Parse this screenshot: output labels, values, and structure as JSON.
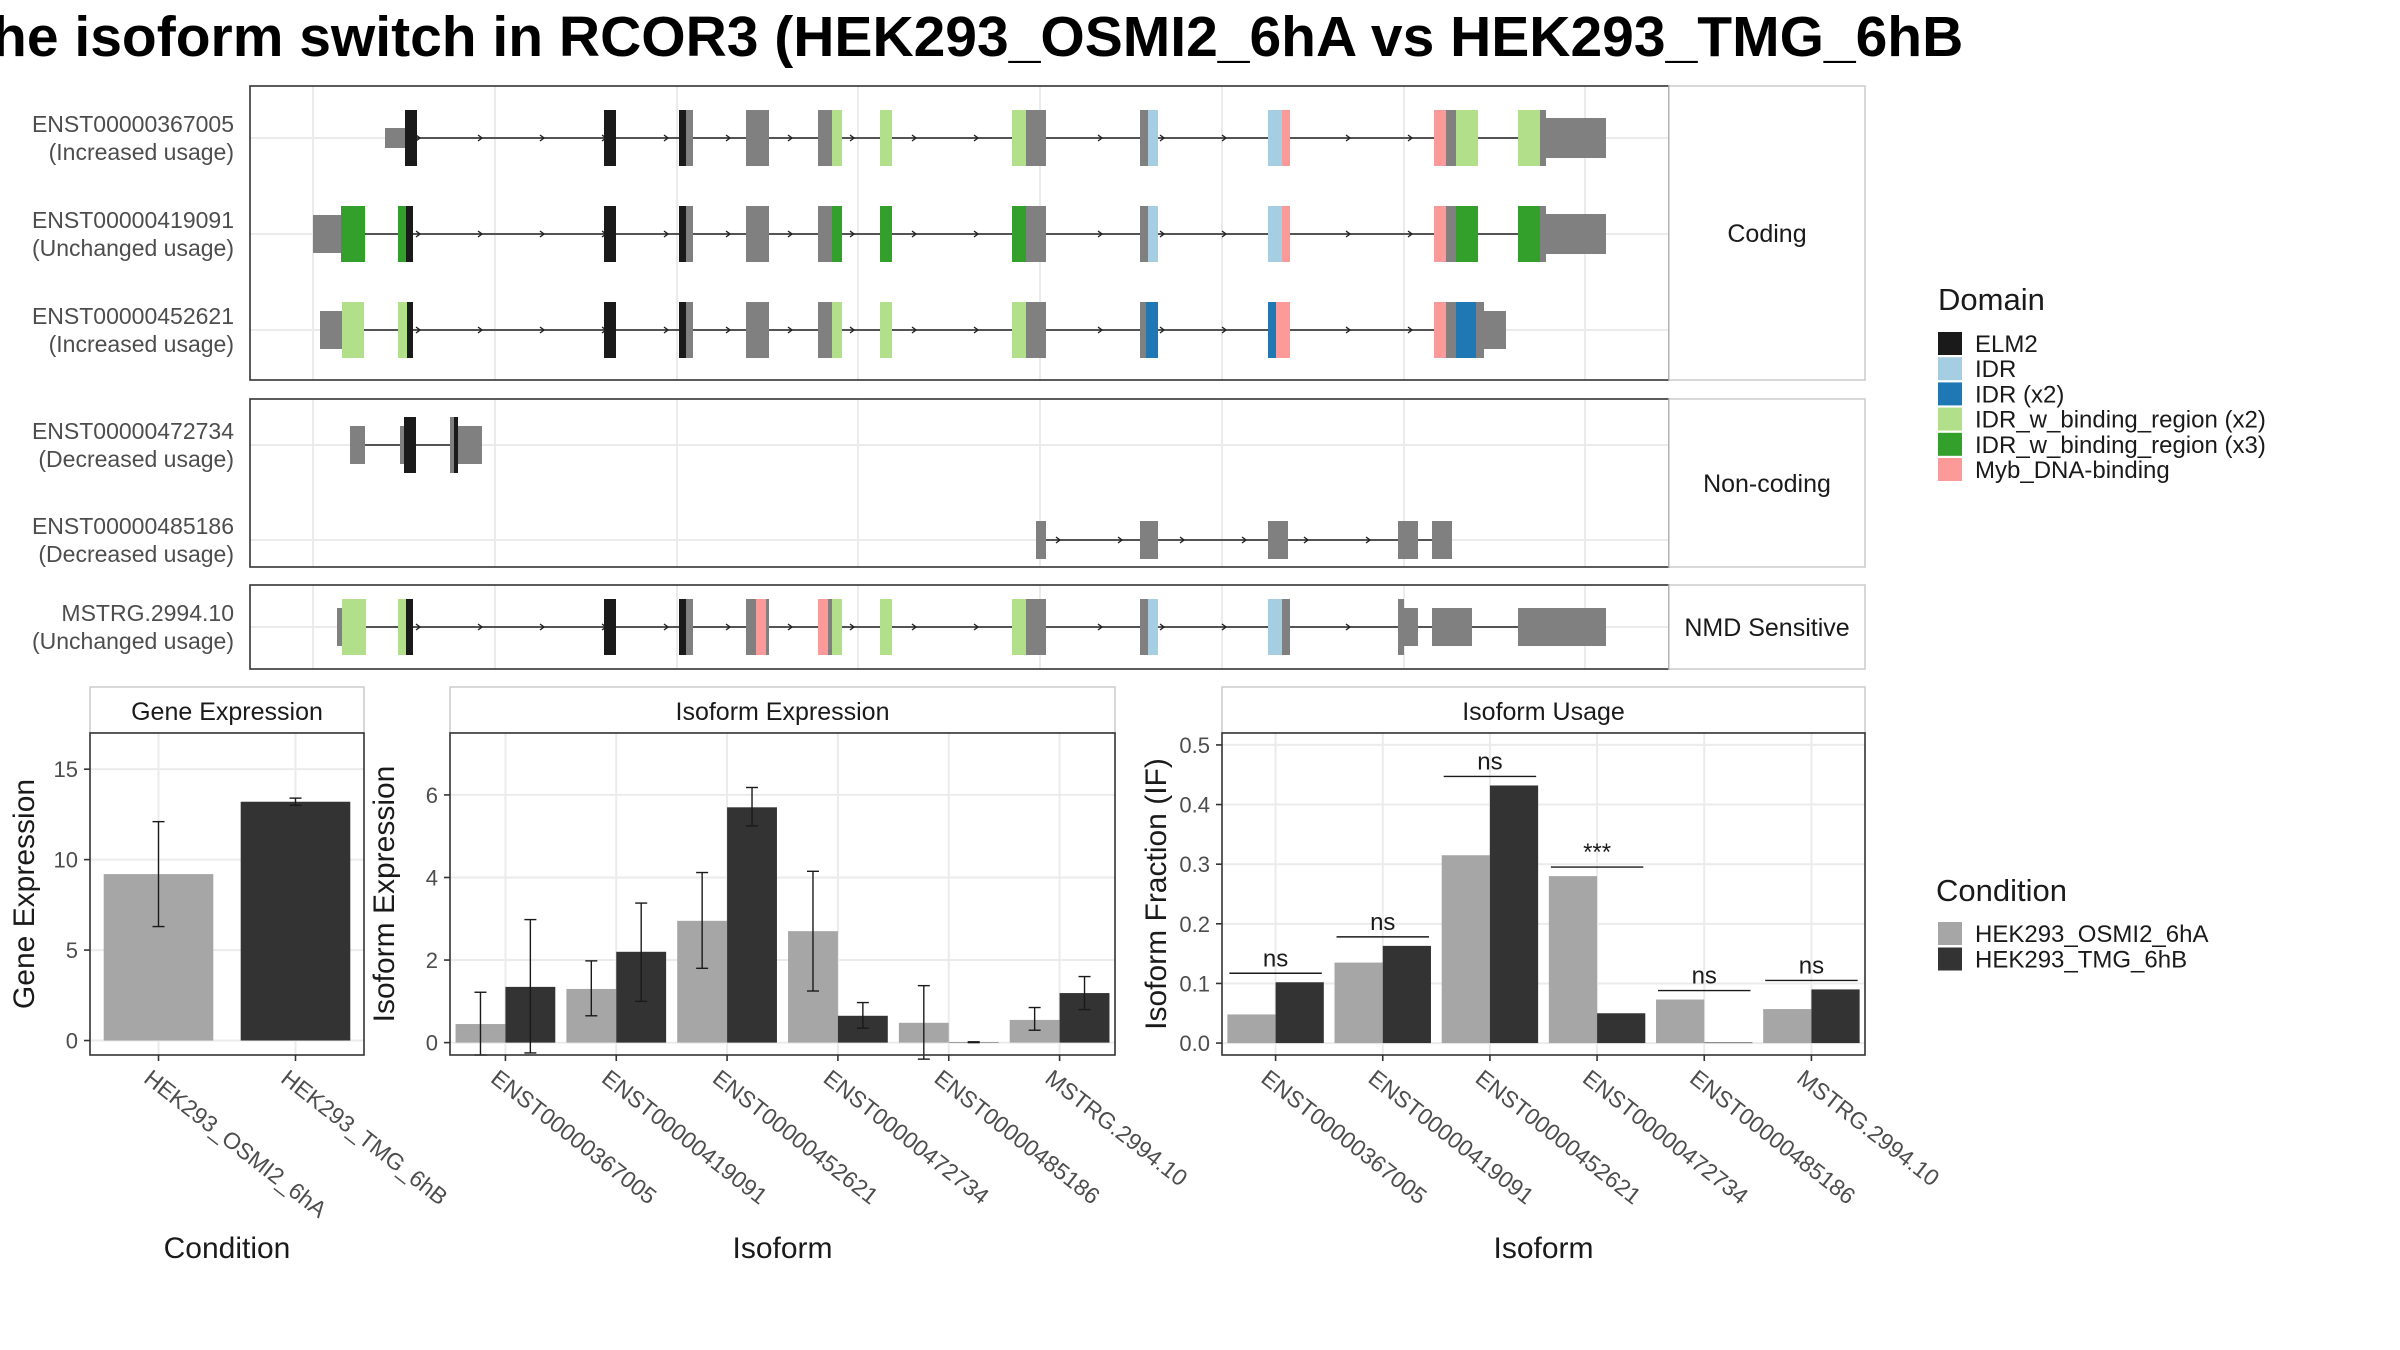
{
  "title": "he isoform switch in RCOR3 (HEK293_OSMI2_6hA vs HEK293_TMG_6hB",
  "colors": {
    "exon": "#808080",
    "intron": "#222222",
    "panel_border": "#333333",
    "grid": "#ebebeb",
    "strip_bg": "#ffffff",
    "cond_a": "#a6a6a6",
    "cond_b": "#333333"
  },
  "domain_legend": {
    "title": "Domain",
    "items": [
      {
        "label": "ELM2",
        "color": "#1a1a1a"
      },
      {
        "label": "IDR",
        "color": "#a6cee3"
      },
      {
        "label": "IDR (x2)",
        "color": "#1f78b4"
      },
      {
        "label": "IDR_w_binding_region (x2)",
        "color": "#b2df8a"
      },
      {
        "label": "IDR_w_binding_region (x3)",
        "color": "#33a02c"
      },
      {
        "label": "Myb_DNA-binding",
        "color": "#fb9a99"
      }
    ]
  },
  "condition_legend": {
    "title": "Condition",
    "items": [
      {
        "label": "HEK293_OSMI2_6hA",
        "color": "#a6a6a6"
      },
      {
        "label": "HEK293_TMG_6hB",
        "color": "#333333"
      }
    ]
  },
  "gene_model": {
    "groups": [
      {
        "label": "Coding",
        "isoforms": [
          {
            "id": "ENST00000367005",
            "status": "(Increased usage)"
          },
          {
            "id": "ENST00000419091",
            "status": "(Unchanged usage)"
          },
          {
            "id": "ENST00000452621",
            "status": "(Increased usage)"
          }
        ]
      },
      {
        "label": "Non-coding",
        "isoforms": [
          {
            "id": "ENST00000472734",
            "status": "(Decreased usage)"
          },
          {
            "id": "ENST00000485186",
            "status": "(Decreased usage)"
          }
        ]
      },
      {
        "label": "NMD Sensitive",
        "isoforms": [
          {
            "id": "MSTRG.2994.10",
            "status": "(Unchanged usage)"
          }
        ]
      }
    ]
  },
  "chart_data": [
    {
      "type": "bar",
      "title": "Gene Expression",
      "xlabel": "Condition",
      "ylabel": "Gene Expression",
      "categories": [
        "HEK293_OSMI2_6hA",
        "HEK293_TMG_6hB"
      ],
      "values": [
        9.2,
        13.2
      ],
      "error_low": [
        6.3,
        13.0
      ],
      "error_high": [
        12.1,
        13.4
      ],
      "ylim": [
        -0.8,
        17
      ],
      "yticks": [
        "0",
        "5",
        "10",
        "15"
      ],
      "ytick_values": [
        0,
        5,
        10,
        15
      ],
      "grid": true
    },
    {
      "type": "bar",
      "title": "Isoform Expression",
      "xlabel": "Isoform",
      "ylabel": "Isoform Expression",
      "categories": [
        "ENST00000367005",
        "ENST00000419091",
        "ENST00000452621",
        "ENST00000472734",
        "ENST00000485186",
        "MSTRG.2994.10"
      ],
      "series": [
        {
          "values": [
            0.45,
            1.3,
            2.95,
            2.7,
            0.48,
            0.55
          ],
          "error_low": [
            -0.3,
            0.65,
            1.8,
            1.25,
            -0.4,
            0.3
          ],
          "error_high": [
            1.22,
            1.98,
            4.12,
            4.15,
            1.38,
            0.85
          ]
        },
        {
          "values": [
            1.35,
            2.2,
            5.7,
            0.65,
            0.01,
            1.2
          ],
          "error_low": [
            -0.25,
            1.0,
            5.25,
            0.35,
            0.0,
            0.8
          ],
          "error_high": [
            2.98,
            3.38,
            6.18,
            0.97,
            0.02,
            1.6
          ]
        }
      ],
      "ylim": [
        -0.3,
        7.5
      ],
      "yticks": [
        "0",
        "2",
        "4",
        "6"
      ],
      "ytick_values": [
        0,
        2,
        4,
        6
      ],
      "grid": true
    },
    {
      "type": "bar",
      "title": "Isoform Usage",
      "xlabel": "Isoform",
      "ylabel": "Isoform Fraction (IF)",
      "categories": [
        "ENST00000367005",
        "ENST00000419091",
        "ENST00000452621",
        "ENST00000472734",
        "ENST00000485186",
        "MSTRG.2994.10"
      ],
      "series": [
        {
          "values": [
            0.048,
            0.135,
            0.315,
            0.28,
            0.073,
            0.057
          ]
        },
        {
          "values": [
            0.102,
            0.163,
            0.432,
            0.05,
            0.001,
            0.09
          ]
        }
      ],
      "significance": [
        "ns",
        "ns",
        "ns",
        "***",
        "ns",
        "ns"
      ],
      "ylim": [
        -0.02,
        0.52
      ],
      "yticks": [
        "0.0",
        "0.1",
        "0.2",
        "0.3",
        "0.4",
        "0.5"
      ],
      "ytick_values": [
        0.0,
        0.1,
        0.2,
        0.3,
        0.4,
        0.5
      ],
      "grid": true
    }
  ]
}
